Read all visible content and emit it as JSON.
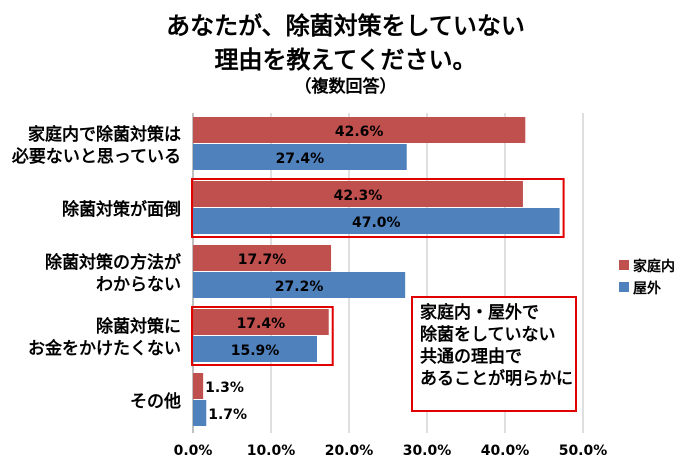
{
  "title_line1": "あなたが、除菌対策をしていない",
  "title_line2": "理由を教えてください。",
  "subtitle": "（複数回答）",
  "annotation": [
    "家庭内・屋外で",
    "除菌をしていない",
    "共通の理由で",
    "あることが明らかに"
  ],
  "colors": {
    "home": "#C0504D",
    "outdoor": "#4F81BD",
    "highlight": "#E00000",
    "grid": "#BFBFBF"
  },
  "chart_data": {
    "type": "bar",
    "orientation": "horizontal",
    "categories": [
      [
        "家庭内で除菌対策は",
        "必要ないと思っている"
      ],
      [
        "除菌対策が面倒"
      ],
      [
        "除菌対策の方法が",
        "わからない"
      ],
      [
        "除菌対策に",
        "お金をかけたくない"
      ],
      [
        "その他"
      ]
    ],
    "series": [
      {
        "name": "家庭内",
        "values": [
          42.6,
          42.3,
          17.7,
          17.4,
          1.3
        ],
        "labels": [
          "42.6%",
          "42.3%",
          "17.7%",
          "17.4%",
          "1.3%"
        ]
      },
      {
        "name": "屋外",
        "values": [
          27.4,
          47.0,
          27.2,
          15.9,
          1.7
        ],
        "labels": [
          "27.4%",
          "47.0%",
          "27.2%",
          "15.9%",
          "1.7%"
        ]
      }
    ],
    "xlim": [
      0,
      50
    ],
    "xticks": [
      "0.0%",
      "10.0%",
      "20.0%",
      "30.0%",
      "40.0%",
      "50.0%"
    ],
    "grid": true,
    "legend": "right",
    "highlighted_categories": [
      1,
      3
    ]
  }
}
